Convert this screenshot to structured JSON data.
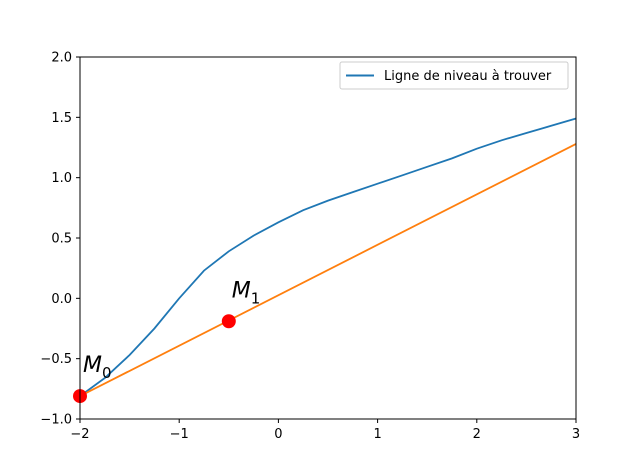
{
  "chart_data": {
    "type": "line",
    "title": "",
    "xlabel": "",
    "ylabel": "",
    "xlim": [
      -2,
      3
    ],
    "ylim": [
      -1.0,
      2.0
    ],
    "xticks": [
      "−2",
      "−1",
      "0",
      "1",
      "2",
      "3"
    ],
    "yticks": [
      "−1.0",
      "−0.5",
      "0.0",
      "0.5",
      "1.0",
      "1.5",
      "2.0"
    ],
    "xtick_values": [
      -2,
      -1,
      0,
      1,
      2,
      3
    ],
    "ytick_values": [
      -1.0,
      -0.5,
      0.0,
      0.5,
      1.0,
      1.5,
      2.0
    ],
    "grid": false,
    "legend_position": "top-right",
    "series": [
      {
        "name": "Ligne de niveau à trouver",
        "color": "#1f77b4",
        "x": [
          -2.0,
          -1.75,
          -1.5,
          -1.25,
          -1.0,
          -0.75,
          -0.5,
          -0.25,
          0.0,
          0.25,
          0.5,
          0.75,
          1.0,
          1.25,
          1.5,
          1.75,
          2.0,
          2.25,
          2.5,
          2.75,
          3.0
        ],
        "y": [
          -0.81,
          -0.66,
          -0.47,
          -0.25,
          0.0,
          0.23,
          0.39,
          0.52,
          0.63,
          0.73,
          0.81,
          0.88,
          0.95,
          1.02,
          1.09,
          1.16,
          1.24,
          1.31,
          1.37,
          1.43,
          1.49
        ]
      },
      {
        "name": "",
        "color": "#ff7f0e",
        "x": [
          -2.0,
          3.0
        ],
        "y": [
          -0.81,
          1.28
        ]
      }
    ],
    "points": [
      {
        "label": "M",
        "sub": "0",
        "x": -2.0,
        "y": -0.81,
        "color": "#ff0000"
      },
      {
        "label": "M",
        "sub": "1",
        "x": -0.5,
        "y": -0.19,
        "color": "#ff0000"
      }
    ]
  }
}
